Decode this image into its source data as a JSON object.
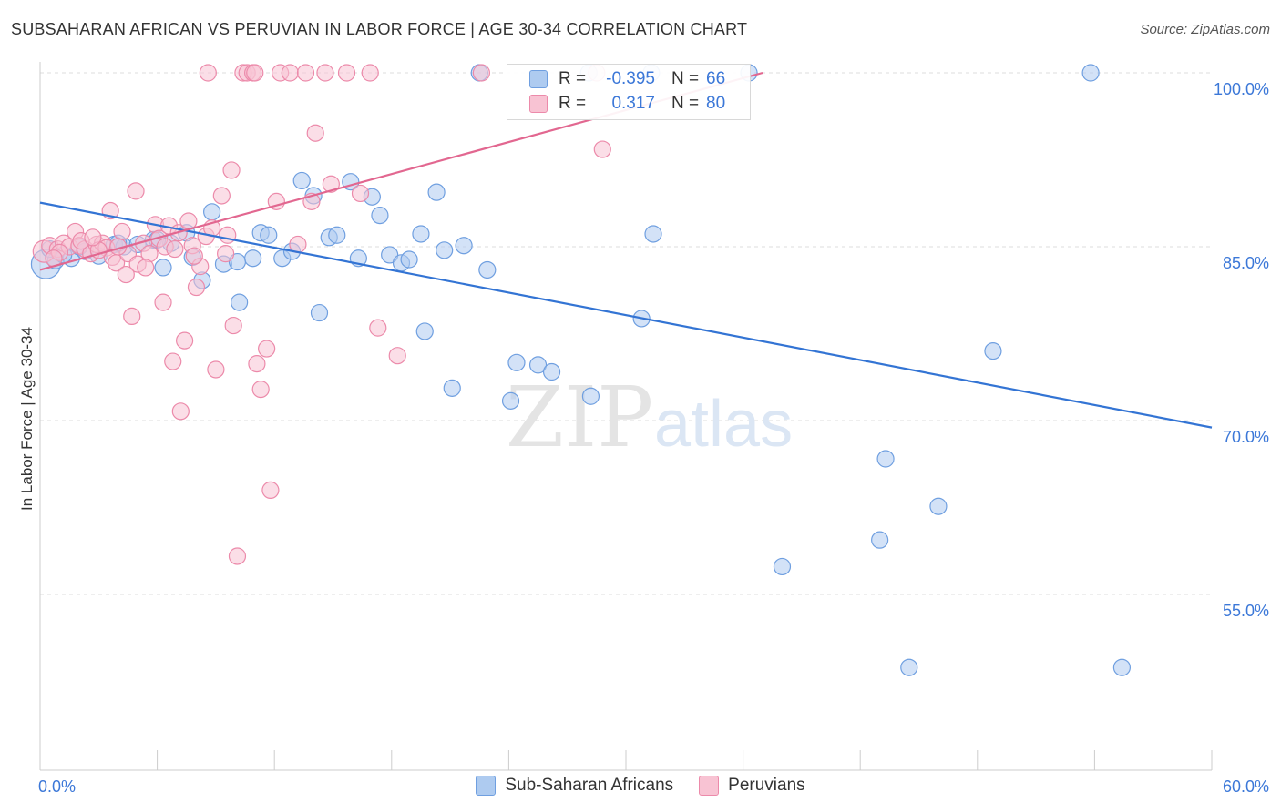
{
  "title": "SUBSAHARAN AFRICAN VS PERUVIAN IN LABOR FORCE | AGE 30-34 CORRELATION CHART",
  "source": "Source: ZipAtlas.com",
  "watermark": {
    "zip": "ZIP",
    "atlas": "atlas"
  },
  "legend_stats": [
    {
      "r_label": "R =",
      "r_value": "-0.395",
      "n_label": "N =",
      "n_value": "66",
      "color": "#aecbf0",
      "border": "#6f9fe0"
    },
    {
      "r_label": "R =",
      "r_value": "0.317",
      "n_label": "N =",
      "n_value": "80",
      "color": "#f8c3d3",
      "border": "#ec8aaa"
    }
  ],
  "colors": {
    "blue_fill": "#aecbf0",
    "blue_stroke": "#6f9fe0",
    "blue_line": "#3374d4",
    "pink_fill": "#f8c3d3",
    "pink_stroke": "#ec8aaa",
    "pink_line": "#e26790",
    "tick_label": "#3c78d8",
    "grid": "#dddddd"
  },
  "chart_data": {
    "type": "scatter",
    "title": "SUBSAHARAN AFRICAN VS PERUVIAN IN LABOR FORCE | AGE 30-34 CORRELATION CHART",
    "xlabel": "",
    "ylabel": "In Labor Force | Age 30-34",
    "xlim": [
      0,
      60
    ],
    "ylim": [
      40,
      101.5
    ],
    "x_tick_labels": [
      "0.0%",
      "60.0%"
    ],
    "y_ticks": [
      55,
      70,
      85,
      100
    ],
    "y_tick_labels": [
      "55.0%",
      "70.0%",
      "85.0%",
      "100.0%"
    ],
    "legend_placement": "bottom",
    "series": [
      {
        "name": "Sub-Saharan Africans",
        "trend": {
          "x": [
            0,
            60
          ],
          "y": [
            88.8,
            69.4
          ]
        },
        "points": [
          [
            0.3,
            83.5,
            16
          ],
          [
            0.8,
            83.8,
            9
          ],
          [
            1.6,
            84.0,
            9
          ],
          [
            2.3,
            84.6,
            9
          ],
          [
            3.0,
            84.2,
            9
          ],
          [
            3.8,
            85.2,
            9
          ],
          [
            4.3,
            85.0,
            9
          ],
          [
            5.0,
            85.2,
            9
          ],
          [
            5.8,
            85.6,
            9
          ],
          [
            6.3,
            83.2,
            9
          ],
          [
            6.7,
            85.3,
            9
          ],
          [
            7.5,
            86.2,
            9
          ],
          [
            7.8,
            84.1,
            9
          ],
          [
            8.3,
            82.1,
            9
          ],
          [
            8.8,
            88.0,
            9
          ],
          [
            9.4,
            83.5,
            9
          ],
          [
            10.1,
            83.7,
            9
          ],
          [
            10.2,
            80.2,
            9
          ],
          [
            10.9,
            84.0,
            9
          ],
          [
            11.3,
            86.2,
            9
          ],
          [
            11.7,
            86.0,
            9
          ],
          [
            12.4,
            84.0,
            9
          ],
          [
            12.9,
            84.6,
            9
          ],
          [
            13.4,
            90.7,
            9
          ],
          [
            14.0,
            89.4,
            9
          ],
          [
            14.3,
            79.3,
            9
          ],
          [
            14.8,
            85.8,
            9
          ],
          [
            15.2,
            86.0,
            9
          ],
          [
            15.9,
            90.6,
            9
          ],
          [
            16.3,
            84.0,
            9
          ],
          [
            17.0,
            89.3,
            9
          ],
          [
            17.4,
            87.7,
            9
          ],
          [
            17.9,
            84.3,
            9
          ],
          [
            18.5,
            83.6,
            9
          ],
          [
            18.9,
            83.9,
            9
          ],
          [
            19.5,
            86.1,
            9
          ],
          [
            19.7,
            77.7,
            9
          ],
          [
            20.3,
            89.7,
            9
          ],
          [
            20.7,
            84.7,
            9
          ],
          [
            21.1,
            72.8,
            9
          ],
          [
            21.7,
            85.1,
            9
          ],
          [
            22.5,
            100.0,
            9
          ],
          [
            22.9,
            83.0,
            9
          ],
          [
            24.1,
            71.7,
            9
          ],
          [
            24.4,
            75.0,
            9
          ],
          [
            25.5,
            74.8,
            9
          ],
          [
            26.2,
            74.2,
            9
          ],
          [
            28.1,
            100.0,
            9
          ],
          [
            28.2,
            72.1,
            9
          ],
          [
            30.8,
            78.8,
            9
          ],
          [
            31.3,
            100.0,
            9
          ],
          [
            31.4,
            86.1,
            9
          ],
          [
            36.3,
            100.0,
            9
          ],
          [
            38.0,
            57.4,
            9
          ],
          [
            43.0,
            59.7,
            9
          ],
          [
            43.3,
            66.7,
            9
          ],
          [
            44.5,
            48.7,
            9
          ],
          [
            46.0,
            62.6,
            9
          ],
          [
            48.8,
            76.0,
            9
          ],
          [
            53.8,
            100.0,
            9
          ],
          [
            55.4,
            48.7,
            9
          ],
          [
            1.2,
            84.3,
            9
          ],
          [
            2.0,
            85.0,
            9
          ],
          [
            4.0,
            85.3,
            9
          ],
          [
            6.0,
            85.6,
            9
          ],
          [
            0.5,
            84.8,
            9
          ]
        ]
      },
      {
        "name": "Peruvians",
        "trend": {
          "x": [
            0,
            37.0
          ],
          "y": [
            83.0,
            100.0
          ]
        },
        "points": [
          [
            0.2,
            84.6,
            12
          ],
          [
            0.5,
            85.1,
            9
          ],
          [
            0.9,
            84.8,
            9
          ],
          [
            1.2,
            85.3,
            9
          ],
          [
            1.5,
            85.0,
            9
          ],
          [
            1.8,
            86.3,
            9
          ],
          [
            2.0,
            85.1,
            9
          ],
          [
            2.3,
            84.8,
            9
          ],
          [
            2.6,
            84.4,
            9
          ],
          [
            2.9,
            85.2,
            9
          ],
          [
            3.2,
            85.3,
            9
          ],
          [
            3.4,
            84.9,
            9
          ],
          [
            3.7,
            84.1,
            9
          ],
          [
            3.9,
            83.6,
            9
          ],
          [
            4.2,
            86.3,
            9
          ],
          [
            4.5,
            84.4,
            9
          ],
          [
            4.7,
            79.0,
            9
          ],
          [
            4.9,
            89.8,
            9
          ],
          [
            5.0,
            83.5,
            9
          ],
          [
            5.3,
            85.3,
            9
          ],
          [
            5.6,
            84.4,
            9
          ],
          [
            5.9,
            86.9,
            9
          ],
          [
            6.1,
            85.7,
            9
          ],
          [
            6.3,
            80.2,
            9
          ],
          [
            6.6,
            86.8,
            9
          ],
          [
            6.8,
            75.1,
            9
          ],
          [
            7.1,
            86.2,
            9
          ],
          [
            7.2,
            70.8,
            9
          ],
          [
            7.4,
            76.9,
            9
          ],
          [
            7.6,
            87.2,
            9
          ],
          [
            7.8,
            85.1,
            9
          ],
          [
            8.0,
            81.5,
            9
          ],
          [
            8.2,
            83.3,
            9
          ],
          [
            8.5,
            85.9,
            9
          ],
          [
            8.8,
            86.6,
            9
          ],
          [
            9.0,
            74.4,
            9
          ],
          [
            9.3,
            89.4,
            9
          ],
          [
            9.5,
            84.4,
            9
          ],
          [
            9.8,
            91.6,
            9
          ],
          [
            9.9,
            78.2,
            9
          ],
          [
            10.1,
            58.3,
            9
          ],
          [
            10.4,
            100.0,
            9
          ],
          [
            10.6,
            100.0,
            9
          ],
          [
            10.9,
            100.0,
            9
          ],
          [
            11.1,
            74.9,
            9
          ],
          [
            11.3,
            72.7,
            9
          ],
          [
            11.6,
            76.2,
            9
          ],
          [
            11.8,
            64.0,
            9
          ],
          [
            12.1,
            88.9,
            9
          ],
          [
            12.3,
            100.0,
            9
          ],
          [
            12.8,
            100.0,
            9
          ],
          [
            13.2,
            85.2,
            9
          ],
          [
            13.6,
            100.0,
            9
          ],
          [
            13.9,
            88.9,
            9
          ],
          [
            14.1,
            94.8,
            9
          ],
          [
            14.6,
            100.0,
            9
          ],
          [
            14.9,
            90.4,
            9
          ],
          [
            15.7,
            100.0,
            9
          ],
          [
            16.4,
            89.6,
            9
          ],
          [
            16.9,
            100.0,
            9
          ],
          [
            17.3,
            78.0,
            9
          ],
          [
            18.3,
            75.6,
            9
          ],
          [
            22.6,
            100.0,
            9
          ],
          [
            28.5,
            100.0,
            9
          ],
          [
            28.8,
            93.4,
            9
          ],
          [
            6.4,
            85.0,
            9
          ],
          [
            3.0,
            84.7,
            9
          ],
          [
            8.6,
            100.0,
            9
          ],
          [
            5.4,
            83.2,
            9
          ],
          [
            4.0,
            85.0,
            9
          ],
          [
            1.0,
            84.5,
            9
          ],
          [
            2.1,
            85.5,
            9
          ],
          [
            6.9,
            84.8,
            9
          ],
          [
            9.6,
            86.0,
            9
          ],
          [
            3.6,
            88.1,
            9
          ],
          [
            7.9,
            84.2,
            9
          ],
          [
            11.0,
            100.0,
            9
          ],
          [
            0.7,
            84.0,
            9
          ],
          [
            2.7,
            85.8,
            9
          ],
          [
            4.4,
            82.6,
            9
          ]
        ]
      }
    ]
  }
}
